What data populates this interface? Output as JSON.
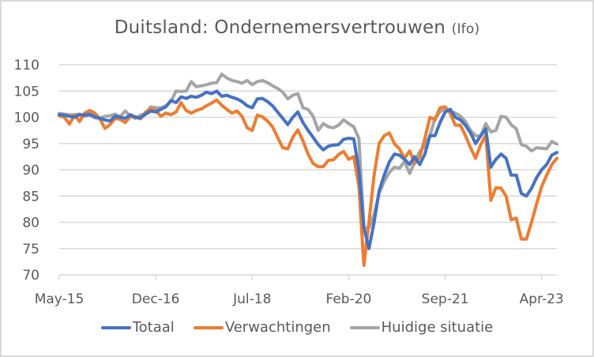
{
  "chart_data": {
    "type": "line",
    "title": "Duitsland: Ondernemersvertrouwen",
    "title_suffix": "(Ifo)",
    "xlabel": "",
    "ylabel": "",
    "ylim": [
      70,
      110
    ],
    "yticks": [
      70,
      75,
      80,
      85,
      90,
      95,
      100,
      105,
      110
    ],
    "grid": true,
    "legend_position": "bottom",
    "x_start": "May-2015",
    "x_frequency": "monthly",
    "xtick_labels": [
      "May-15",
      "Dec-16",
      "Jul-18",
      "Feb-20",
      "Sep-21",
      "Apr-23"
    ],
    "xtick_indices": [
      0,
      19,
      38,
      57,
      76,
      95
    ],
    "series": [
      {
        "name": "Totaal",
        "color": "#4472C4",
        "values": [
          100.5,
          100.4,
          100.2,
          100.0,
          100.5,
          100.4,
          100.6,
          100.1,
          99.8,
          99.5,
          99.3,
          100.2,
          100.0,
          99.8,
          100.5,
          100.0,
          99.9,
          100.6,
          101.2,
          101.0,
          101.5,
          102.0,
          103.2,
          102.8,
          103.9,
          103.6,
          104.0,
          103.8,
          104.2,
          104.8,
          104.5,
          105.0,
          104.0,
          104.2,
          103.8,
          103.5,
          103.0,
          102.2,
          101.8,
          103.5,
          103.6,
          103.0,
          102.2,
          101.0,
          99.8,
          98.6,
          100.0,
          101.0,
          99.0,
          97.5,
          96.2,
          94.8,
          93.8,
          94.5,
          94.7,
          94.8,
          95.8,
          96.0,
          95.9,
          90.0,
          79.0,
          75.0,
          80.0,
          86.0,
          89.0,
          91.5,
          93.0,
          92.8,
          92.0,
          91.0,
          92.5,
          91.0,
          93.0,
          96.5,
          96.5,
          99.0,
          101.0,
          101.5,
          100.0,
          99.5,
          98.5,
          97.0,
          95.0,
          96.5,
          97.8,
          90.5,
          92.0,
          93.0,
          92.2,
          89.0,
          89.0,
          85.5,
          85.0,
          86.5,
          88.5,
          90.0,
          91.0,
          92.8,
          93.3
        ]
      },
      {
        "name": "Verwachtingen",
        "color": "#ED7D31",
        "values": [
          100.3,
          100.0,
          98.7,
          100.4,
          99.2,
          100.8,
          101.3,
          100.8,
          99.7,
          97.9,
          98.6,
          99.8,
          99.6,
          99.0,
          100.2,
          100.1,
          99.7,
          101.0,
          101.6,
          101.3,
          100.2,
          100.8,
          100.5,
          101.0,
          102.8,
          101.3,
          100.8,
          101.3,
          101.6,
          102.2,
          102.7,
          103.3,
          102.3,
          101.5,
          100.8,
          101.2,
          100.2,
          98.0,
          97.5,
          100.4,
          100.1,
          99.3,
          98.2,
          96.2,
          94.2,
          94.0,
          96.2,
          97.6,
          95.5,
          93.0,
          91.2,
          90.6,
          90.6,
          91.8,
          91.9,
          92.9,
          93.5,
          92.0,
          92.5,
          87.0,
          71.8,
          80.0,
          89.0,
          95.0,
          96.5,
          97.0,
          95.0,
          94.0,
          92.2,
          93.6,
          91.2,
          92.4,
          96.0,
          100.0,
          99.5,
          101.8,
          102.0,
          100.8,
          98.5,
          98.5,
          96.5,
          94.2,
          92.2,
          94.8,
          96.6,
          84.2,
          86.6,
          86.5,
          85.0,
          80.5,
          80.8,
          76.8,
          76.8,
          80.0,
          83.5,
          86.8,
          89.0,
          91.0,
          92.2
        ]
      },
      {
        "name": "Huidige situatie",
        "color": "#A5A5A5",
        "values": [
          100.7,
          100.6,
          100.5,
          100.5,
          100.6,
          100.2,
          100.4,
          99.9,
          99.8,
          100.2,
          100.3,
          100.6,
          100.1,
          101.2,
          100.2,
          99.8,
          100.4,
          100.7,
          102.0,
          101.8,
          101.8,
          102.2,
          103.0,
          105.0,
          104.9,
          105.0,
          106.8,
          105.8,
          106.0,
          106.2,
          106.5,
          106.6,
          108.2,
          107.5,
          107.0,
          106.8,
          106.5,
          107.0,
          106.2,
          106.8,
          107.0,
          106.6,
          106.0,
          105.5,
          104.8,
          103.5,
          104.2,
          104.5,
          101.8,
          101.5,
          100.2,
          97.5,
          98.8,
          98.2,
          98.0,
          98.5,
          99.5,
          98.8,
          98.2,
          96.0,
          79.0,
          78.9,
          81.5,
          85.5,
          87.8,
          89.5,
          90.5,
          90.3,
          91.6,
          89.3,
          91.5,
          93.5,
          94.5,
          96.5,
          99.8,
          101.0,
          101.8,
          101.2,
          100.8,
          100.2,
          99.2,
          97.5,
          96.5,
          96.4,
          98.8,
          97.2,
          97.5,
          100.2,
          100.0,
          98.6,
          97.8,
          94.8,
          94.5,
          93.6,
          94.2,
          94.1,
          94.0,
          95.4,
          94.9
        ]
      }
    ]
  }
}
